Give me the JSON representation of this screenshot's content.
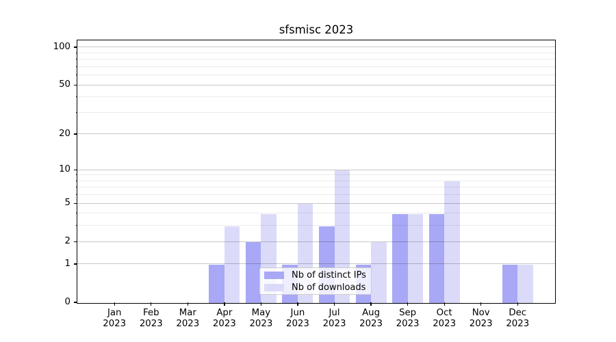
{
  "title": "sfsmisc 2023",
  "chart_data": {
    "type": "bar",
    "title": "sfsmisc 2023",
    "categories": [
      "Jan",
      "Feb",
      "Mar",
      "Apr",
      "May",
      "Jun",
      "Jul",
      "Aug",
      "Sep",
      "Oct",
      "Nov",
      "Dec"
    ],
    "year": "2023",
    "series": [
      {
        "name": "Nb of distinct IPs",
        "color": "#a8a8f7",
        "values": [
          0,
          0,
          0,
          1,
          2,
          1,
          3,
          1,
          4,
          4,
          0,
          1
        ]
      },
      {
        "name": "Nb of downloads",
        "color": "#dbdbf9",
        "values": [
          0,
          0,
          0,
          3,
          4,
          5,
          10,
          2,
          4,
          8,
          0,
          1
        ]
      }
    ],
    "xlabel": "",
    "ylabel": "",
    "y_ticks": [
      0,
      1,
      2,
      5,
      10,
      20,
      50,
      100
    ],
    "y_gridlines_major": [
      1,
      2,
      5,
      10,
      20,
      50,
      100
    ],
    "y_gridlines_minor": [
      3,
      4,
      6,
      7,
      8,
      9,
      30,
      40,
      60,
      70,
      80,
      90
    ],
    "y_scale": "log10(1+y)",
    "ylim": [
      0,
      115
    ],
    "grid": "on",
    "legend_position": "lower center",
    "colors": {
      "grid_major": "rgba(0,0,0,0.22)",
      "grid_minor": "rgba(0,0,0,0.08)",
      "axis": "#000000",
      "legend_border": "#cccccc",
      "legend_bg": "rgba(255,255,255,0.8)",
      "text": "#000000"
    }
  }
}
